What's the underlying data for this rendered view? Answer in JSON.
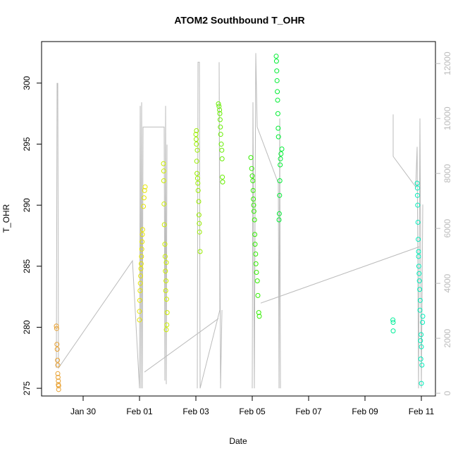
{
  "chart_data": {
    "type": "scatter",
    "title": "ATOM2 Southbound T_OHR",
    "xlabel": "Date",
    "ylabel": "T_OHR",
    "xlim": [
      28.525,
      42.5
    ],
    "ylim": [
      274.37,
      303.4
    ],
    "y2lim": [
      -100,
      12800
    ],
    "xticks": [
      {
        "value": 30,
        "label": "Jan 30"
      },
      {
        "value": 32,
        "label": "Feb 01"
      },
      {
        "value": 34,
        "label": "Feb 03"
      },
      {
        "value": 36,
        "label": "Feb 05"
      },
      {
        "value": 38,
        "label": "Feb 07"
      },
      {
        "value": 40,
        "label": "Feb 09"
      },
      {
        "value": 42,
        "label": "Feb 11"
      }
    ],
    "yticks": [
      275,
      280,
      285,
      290,
      295,
      300
    ],
    "y2ticks": [
      0,
      2000,
      4000,
      6000,
      8000,
      10000,
      12000
    ],
    "series": [
      {
        "color": "#e8a030",
        "x": [
          29.05,
          29.06,
          29.07,
          29.08,
          29.09,
          29.1,
          29.1,
          29.11,
          29.12,
          29.12,
          29.13,
          29.13
        ],
        "values": [
          280.1,
          279.9,
          278.6,
          278.2,
          277.3,
          276.9,
          276.2,
          275.9,
          275.6,
          275.3,
          275.2,
          274.9
        ]
      },
      {
        "color": "#e6e600",
        "x": [
          32.0,
          32.0,
          32.01,
          32.02,
          32.03,
          32.04,
          32.05,
          32.06,
          32.07,
          32.08,
          32.09,
          32.1,
          32.11,
          32.14,
          32.16,
          32.18,
          32.2
        ],
        "values": [
          280.6,
          281.3,
          282.2,
          283.0,
          283.6,
          284.2,
          284.8,
          285.2,
          285.8,
          286.4,
          287.0,
          287.6,
          288.0,
          289.9,
          290.6,
          291.2,
          291.5
        ]
      },
      {
        "color": "#ccee00",
        "x": [
          32.95,
          32.97,
          32.98,
          32.96,
          32.93,
          32.94,
          32.92,
          32.95,
          32.91,
          32.9,
          32.88,
          32.87,
          32.86,
          32.86,
          32.85
        ],
        "values": [
          279.8,
          280.2,
          281.2,
          282.3,
          283.0,
          283.8,
          284.6,
          285.3,
          285.8,
          286.8,
          288.4,
          290.1,
          292.0,
          292.8,
          293.4
        ]
      },
      {
        "color": "#99ee00",
        "x": [
          34.15,
          34.13,
          34.12,
          34.11,
          34.1,
          34.08,
          34.07,
          34.06,
          34.04,
          34.03,
          34.05,
          34.02,
          34.01,
          34.0,
          34.02
        ],
        "values": [
          286.2,
          287.8,
          288.5,
          289.2,
          290.3,
          291.2,
          291.8,
          292.2,
          292.6,
          293.6,
          294.5,
          295.0,
          295.4,
          295.8,
          296.1
        ]
      },
      {
        "color": "#66ee00",
        "x": [
          34.95,
          34.94,
          34.93,
          34.92,
          34.9,
          34.88,
          34.87,
          34.86,
          34.85,
          34.84,
          34.82,
          34.8
        ],
        "values": [
          291.9,
          292.3,
          293.8,
          294.5,
          295.0,
          295.8,
          296.4,
          297.0,
          297.5,
          297.8,
          298.1,
          298.3
        ]
      },
      {
        "color": "#33ee00",
        "x": [
          36.25,
          36.23,
          36.2,
          36.18,
          36.15,
          36.13,
          36.12,
          36.1,
          36.09,
          36.08,
          36.06,
          36.05,
          36.04,
          36.03,
          36.02,
          36.0,
          35.98,
          35.95
        ],
        "values": [
          280.9,
          281.2,
          282.6,
          283.8,
          284.5,
          285.2,
          286.0,
          286.8,
          287.6,
          288.8,
          289.5,
          290.0,
          290.5,
          291.2,
          292.0,
          292.4,
          293.0,
          293.9
        ]
      },
      {
        "color": "#00ee33",
        "x": [
          36.95,
          36.96,
          36.97,
          36.98,
          36.99,
          37.0,
          37.02,
          37.05,
          36.93,
          36.92,
          36.91,
          36.9,
          36.89,
          36.88,
          36.87,
          36.86,
          36.85
        ],
        "values": [
          288.8,
          289.3,
          290.8,
          292.0,
          293.3,
          293.8,
          294.2,
          294.6,
          295.6,
          296.3,
          297.5,
          298.6,
          299.3,
          300.2,
          301.0,
          301.8,
          302.2
        ]
      },
      {
        "color": "#00ee99",
        "x": [
          41.0,
          41.0,
          40.99
        ],
        "values": [
          279.7,
          280.4,
          280.6
        ]
      },
      {
        "color": "#00eebb",
        "x": [
          42.0,
          42.02,
          41.98,
          42.0,
          41.97,
          41.99,
          42.04,
          42.05,
          41.95,
          41.96,
          41.94,
          41.93,
          41.92,
          41.91,
          41.9,
          41.9,
          41.89,
          41.88,
          41.87,
          41.86,
          41.86,
          41.85
        ],
        "values": [
          275.4,
          276.9,
          277.4,
          278.4,
          278.9,
          279.4,
          280.4,
          280.9,
          281.4,
          282.2,
          283.1,
          283.8,
          284.4,
          285.0,
          285.8,
          286.2,
          287.2,
          288.6,
          290.0,
          290.8,
          291.4,
          291.8
        ]
      },
      {
        "type": "line",
        "axis": "y2",
        "color": "#bbbbbb",
        "x": [
          29.05,
          29.075,
          29.1,
          29.125,
          31.75,
          32.0,
          32.025,
          32.05,
          32.075,
          32.1,
          32.125,
          32.875,
          32.9,
          32.925,
          32.95,
          32.975,
          null,
          32.175,
          34.8,
          null,
          34.05,
          34.075,
          34.125,
          34.15,
          34.85,
          34.825,
          34.875,
          34.925,
          null,
          36.0,
          36.025,
          36.075,
          36.125,
          36.175,
          36.925,
          36.95,
          36.975,
          37.0,
          null,
          36.3,
          41.925,
          null,
          41.0,
          41.0,
          41.8,
          41.85,
          41.9,
          41.95,
          42.0,
          42.05
        ],
        "values": [
          920,
          11280,
          11280,
          920,
          4820,
          180,
          10460,
          180,
          10590,
          180,
          9690,
          9690,
          460,
          10460,
          330,
          9050,
          null,
          770,
          2720,
          null,
          180,
          12050,
          12050,
          180,
          3030,
          12050,
          180,
          3030,
          null,
          180,
          10590,
          180,
          12380,
          9690,
          7640,
          180,
          10000,
          180,
          null,
          3280,
          5330,
          null,
          10150,
          8620,
          7510,
          8970,
          180,
          10000,
          180,
          6870
        ]
      }
    ]
  }
}
